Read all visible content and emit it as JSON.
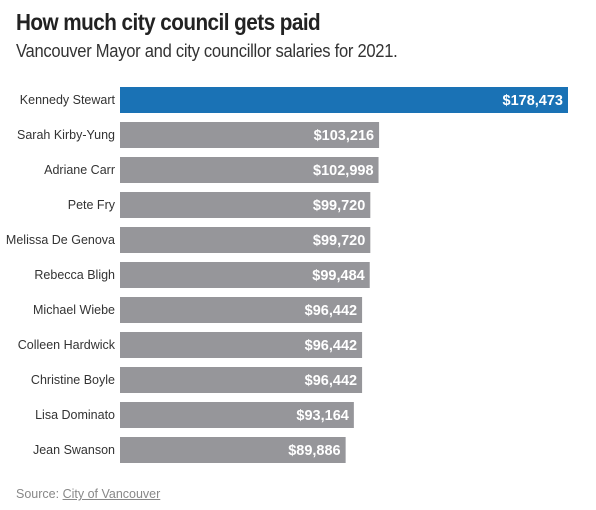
{
  "title": "How much city council gets paid",
  "subtitle": "Vancouver Mayor and city councillor salaries for 2021.",
  "source": {
    "prefix": "Source: ",
    "link_text": "City of Vancouver"
  },
  "colors": {
    "highlight": "#1a72b5",
    "default": "#96969a"
  },
  "chart_data": {
    "type": "bar",
    "orientation": "horizontal",
    "title": "How much city council gets paid",
    "subtitle": "Vancouver Mayor and city councillor salaries for 2021.",
    "xlim": [
      0,
      178473
    ],
    "grid": false,
    "categories": [
      "Kennedy Stewart",
      "Sarah Kirby-Yung",
      "Adriane Carr",
      "Pete Fry",
      "Melissa De Genova",
      "Rebecca Bligh",
      "Michael Wiebe",
      "Colleen Hardwick",
      "Christine Boyle",
      "Lisa Dominato",
      "Jean Swanson"
    ],
    "values": [
      178473,
      103216,
      102998,
      99720,
      99720,
      99484,
      96442,
      96442,
      96442,
      93164,
      89886
    ],
    "value_labels": [
      "$178,473",
      "$103,216",
      "$102,998",
      "$99,720",
      "$99,720",
      "$99,484",
      "$96,442",
      "$96,442",
      "$96,442",
      "$93,164",
      "$89,886"
    ],
    "highlight_index": 0
  }
}
